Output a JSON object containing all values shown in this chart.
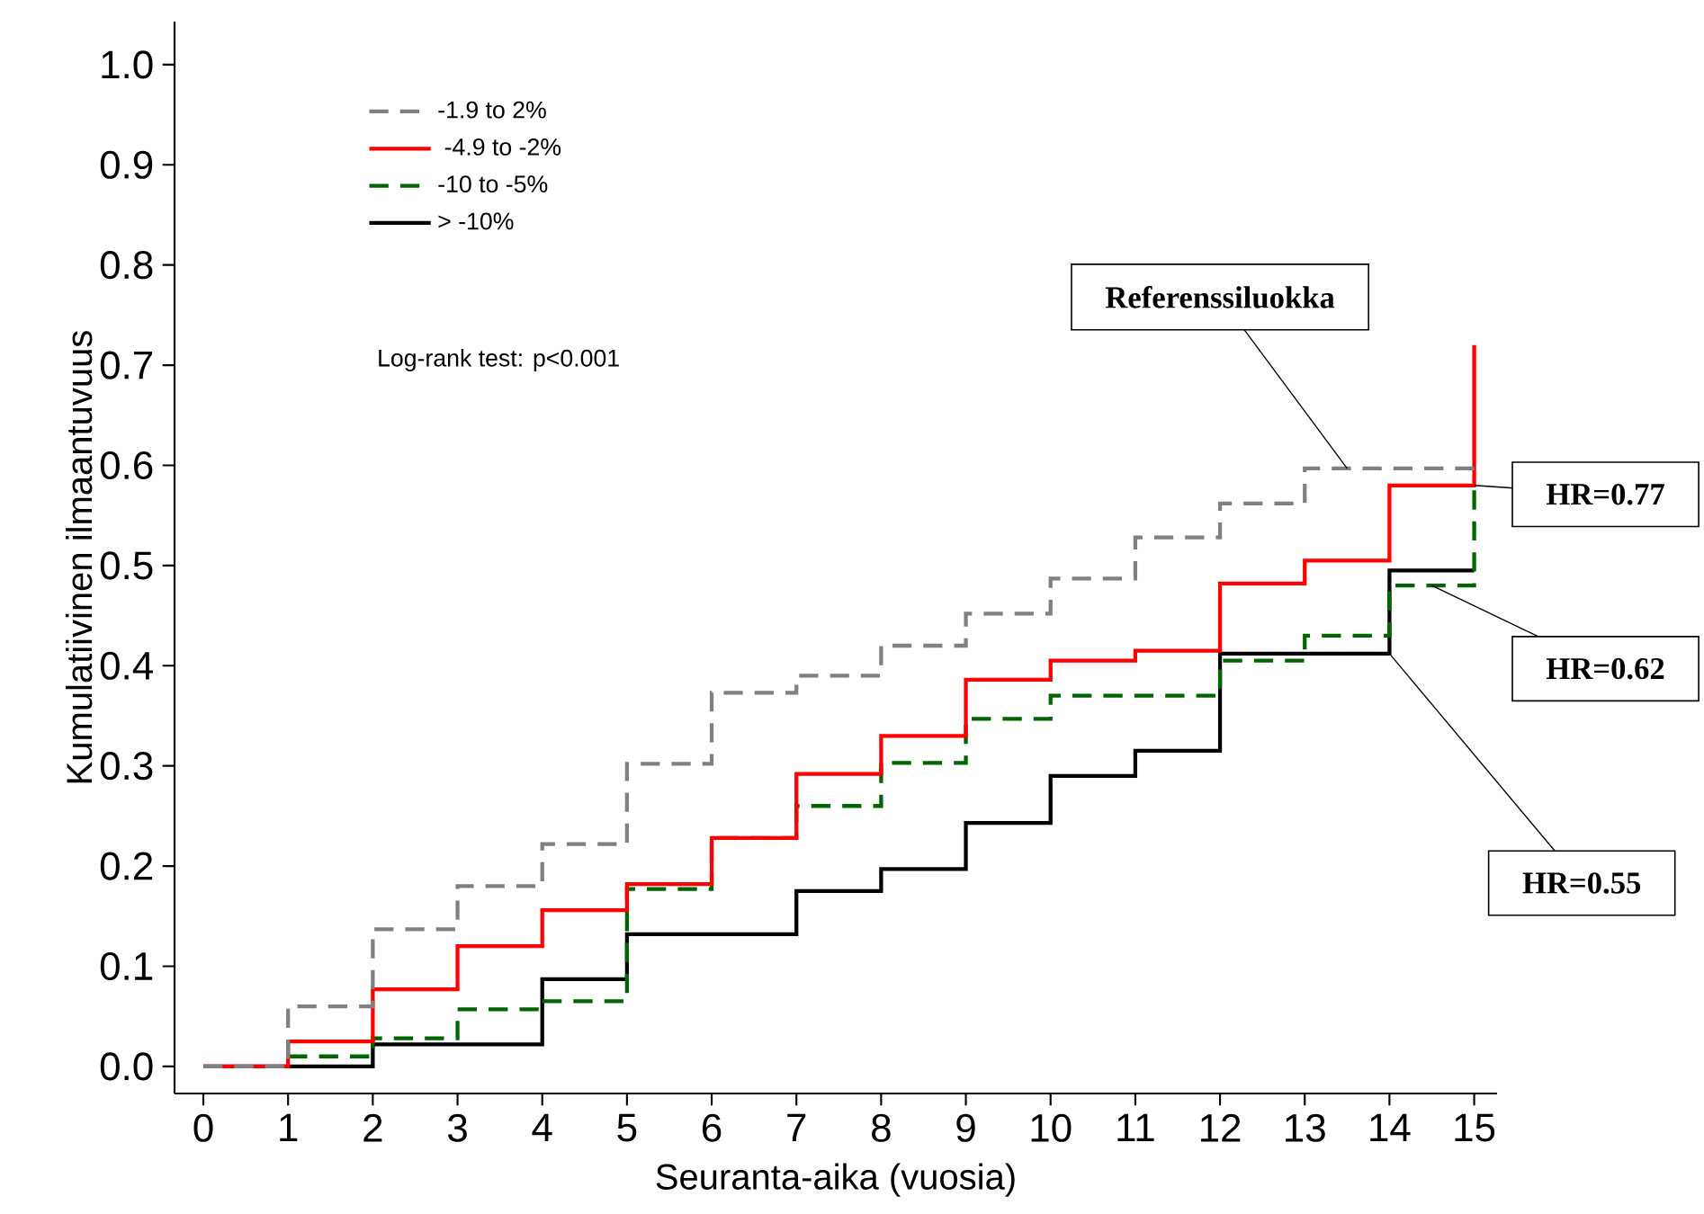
{
  "chart_data": {
    "type": "step",
    "xlabel": "Seuranta-aika (vuosia)",
    "ylabel": "Kumulatiivinen ilmaantuvuus",
    "x": [
      0,
      1,
      2,
      3,
      4,
      5,
      6,
      7,
      8,
      9,
      10,
      11,
      12,
      13,
      14,
      15
    ],
    "series": [
      {
        "name": "-1.9 to 2%",
        "color": "#808080",
        "line_style": "dashed",
        "values": [
          0,
          0.06,
          0.137,
          0.18,
          0.222,
          0.302,
          0.373,
          0.39,
          0.42,
          0.452,
          0.487,
          0.528,
          0.562,
          0.597,
          0.597,
          0.597
        ]
      },
      {
        "name": " -4.9 to -2%",
        "color": "#ff0000",
        "line_style": "solid",
        "values": [
          0,
          0.025,
          0.077,
          0.12,
          0.156,
          0.182,
          0.228,
          0.292,
          0.33,
          0.386,
          0.405,
          0.415,
          0.482,
          0.505,
          0.58,
          0.72
        ]
      },
      {
        "name": "-10 to -5%",
        "color": "#006400",
        "line_style": "dashed",
        "values": [
          null,
          0.01,
          0.028,
          0.057,
          0.065,
          0.177,
          0.228,
          0.26,
          0.303,
          0.347,
          0.37,
          0.37,
          0.405,
          0.43,
          0.48,
          0.575
        ]
      },
      {
        "name": "> -10%",
        "color": "#000000",
        "line_style": "solid",
        "values": [
          0,
          0,
          0.022,
          0.022,
          0.087,
          0.132,
          0.132,
          0.175,
          0.197,
          0.243,
          0.29,
          0.315,
          0.412,
          0.412,
          0.495,
          0.495
        ]
      }
    ],
    "xlim": [
      -0.34,
      15.27
    ],
    "ylim": [
      -0.027,
      1.043
    ],
    "xticks": [
      0,
      1,
      2,
      3,
      4,
      5,
      6,
      7,
      8,
      9,
      10,
      11,
      12,
      13,
      14,
      15
    ],
    "yticks": [
      {
        "value": 0,
        "label": "0.0"
      },
      0.1,
      0.2,
      0.3,
      0.4,
      0.5,
      0.6,
      0.7,
      0.8,
      0.9,
      {
        "value": 1,
        "label": "1.0"
      }
    ],
    "grid": false,
    "legend": "top left",
    "annotations": [
      "Log-rank test: p<0.001",
      {
        "text": "Referenssiluokka",
        "x": 13.5,
        "y": 0.597
      },
      {
        "text": "HR=0.77",
        "x": 15,
        "y": 0.58
      },
      {
        "text": "HR=0.62",
        "x": 14.5,
        "y": 0.48
      },
      {
        "text": "HR=0.55",
        "x": 14,
        "y": 0.412
      }
    ]
  }
}
